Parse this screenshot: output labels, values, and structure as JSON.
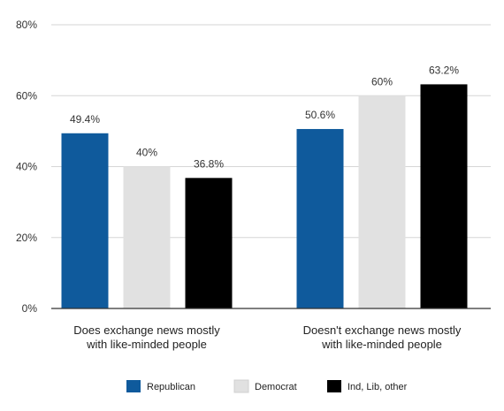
{
  "chart_data": {
    "type": "bar",
    "title": "",
    "xlabel": "",
    "ylabel": "",
    "categories": [
      [
        "Does exchange news mostly",
        "with like-minded people"
      ],
      [
        "Doesn't exchange news mostly",
        "with like-minded people"
      ]
    ],
    "series": [
      {
        "name": "Republican",
        "values": [
          49.4,
          50.6
        ],
        "labels": [
          "49.4%",
          "50.6%"
        ],
        "color": "#0f5a9c"
      },
      {
        "name": "Democrat",
        "values": [
          40,
          60
        ],
        "labels": [
          "40%",
          "60%"
        ],
        "color": "#e1e1e1"
      },
      {
        "name": "Ind, Lib, other",
        "values": [
          36.8,
          63.2
        ],
        "labels": [
          "36.8%",
          "63.2%"
        ],
        "color": "#000000"
      }
    ],
    "ylim": [
      0,
      80
    ],
    "yticks": [
      0,
      20,
      40,
      60,
      80
    ],
    "ytick_labels": [
      "0%",
      "20%",
      "40%",
      "60%",
      "80%"
    ],
    "grid": true,
    "legend_position": "bottom-center"
  }
}
